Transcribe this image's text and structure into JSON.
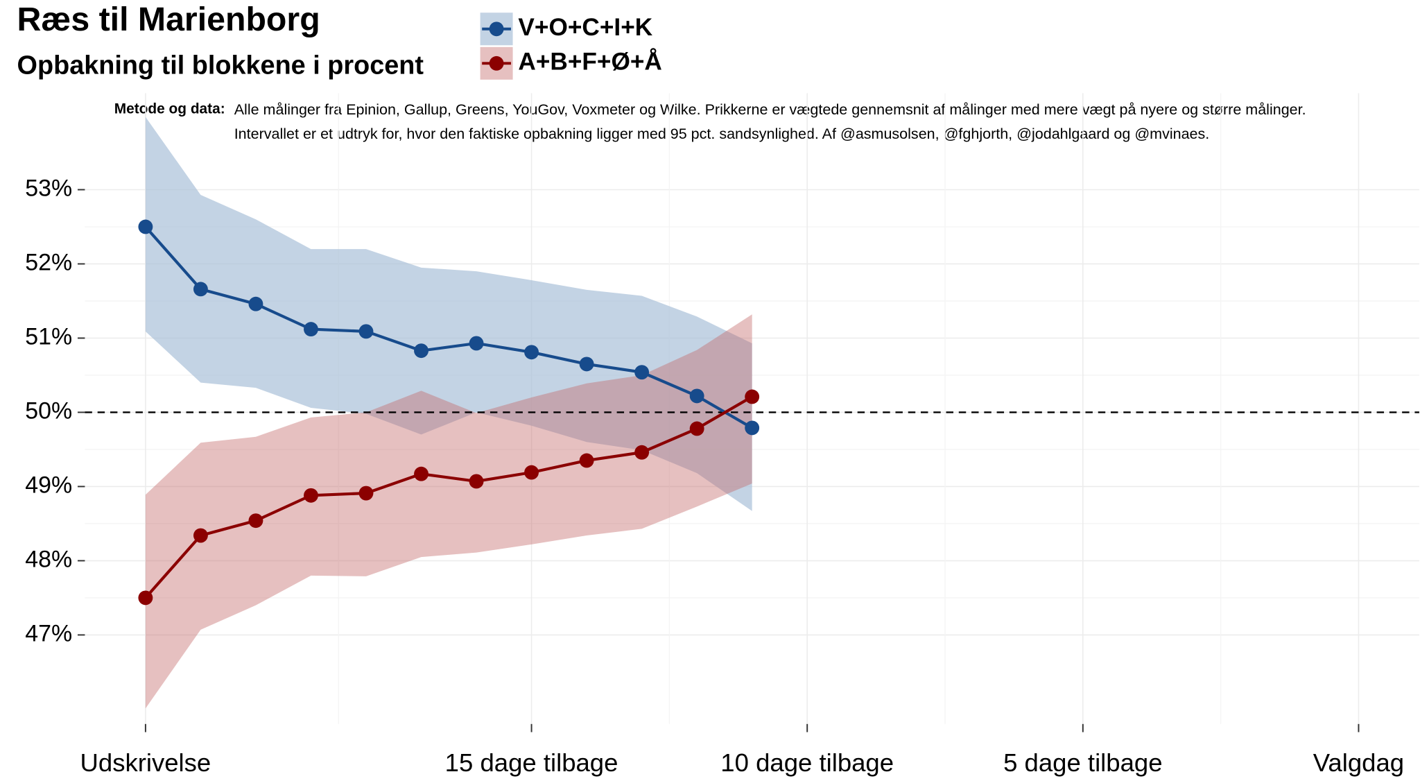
{
  "chart_data": {
    "type": "line",
    "title": "Ræs til Marienborg",
    "subtitle": "Opbakning til blokkene i procent",
    "note_label": "Metode og data:",
    "note": [
      "Alle målinger fra Epinion, Gallup, Greens, YouGov, Voxmeter og Wilke. Prikkerne er vægtede gennemsnit af målinger med mere vægt på nyere og større målinger.",
      "Intervallet er et udtryk for, hvor den faktiske opbakning ligger med 95 pct. sandsynlighed. Af @asmusolsen, @fghjorth, @jodahlgaard og @mvinaes."
    ],
    "x": [
      22,
      21,
      20,
      19,
      18,
      17,
      16,
      15,
      14,
      13,
      12,
      11
    ],
    "xlim": [
      23.1,
      -1.1
    ],
    "xticks": [
      {
        "value": 22,
        "label": "Udskrivelse"
      },
      {
        "value": 15,
        "label": "15 dage tilbage"
      },
      {
        "value": 10,
        "label": "10 dage tilbage"
      },
      {
        "value": 5,
        "label": "5 dage tilbage"
      },
      {
        "value": 0,
        "label": "Valgdag"
      }
    ],
    "ylim": [
      45.8,
      54.3
    ],
    "yticks": [
      {
        "value": 47,
        "label": "47%"
      },
      {
        "value": 48,
        "label": "48%"
      },
      {
        "value": 49,
        "label": "49%"
      },
      {
        "value": 50,
        "label": "50%"
      },
      {
        "value": 51,
        "label": "51%"
      },
      {
        "value": 52,
        "label": "52%"
      },
      {
        "value": 53,
        "label": "53%"
      }
    ],
    "hline": 50,
    "grid": true,
    "series": [
      {
        "name": "V+O+C+I+K",
        "color": "#174b8c",
        "band_color": "#a9c0d8",
        "band_opacity": 0.7,
        "values": [
          52.5,
          51.66,
          51.46,
          51.12,
          51.09,
          50.83,
          50.93,
          50.81,
          50.65,
          50.54,
          50.22,
          49.79
        ],
        "upper": [
          53.98,
          52.93,
          52.6,
          52.2,
          52.2,
          51.95,
          51.9,
          51.78,
          51.65,
          51.57,
          51.29,
          50.93
        ],
        "lower": [
          51.09,
          50.4,
          50.33,
          50.06,
          49.98,
          49.7,
          50.0,
          49.82,
          49.6,
          49.49,
          49.18,
          48.67
        ]
      },
      {
        "name": "A+B+F+Ø+Å",
        "color": "#8b0000",
        "band_color": "#c46a6a",
        "band_opacity": 0.42,
        "values": [
          47.5,
          48.34,
          48.54,
          48.88,
          48.91,
          49.17,
          49.07,
          49.19,
          49.35,
          49.46,
          49.78,
          50.21
        ],
        "upper": [
          48.89,
          49.59,
          49.67,
          49.93,
          50.0,
          50.29,
          49.99,
          50.2,
          50.39,
          50.5,
          50.84,
          51.32
        ],
        "lower": [
          46.01,
          47.07,
          47.4,
          47.8,
          47.79,
          48.05,
          48.11,
          48.22,
          48.34,
          48.43,
          48.73,
          49.04
        ]
      }
    ]
  }
}
